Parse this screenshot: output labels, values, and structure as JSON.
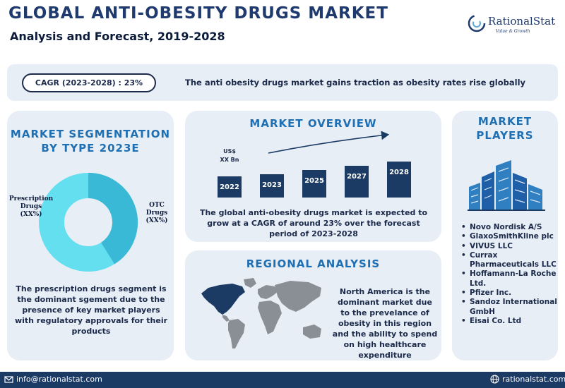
{
  "header": {
    "title": "GLOBAL ANTI-OBESITY DRUGS MARKET",
    "subtitle": "Analysis and Forecast, 2019-2028"
  },
  "logo": {
    "name": "RationalStat",
    "tagline": "Value & Growth"
  },
  "summary": {
    "cagr": "CAGR (2023-2028) : 23%",
    "tagline": "The anti obesity drugs market gains traction as obesity rates rise globally"
  },
  "segmentation": {
    "heading_line1": "MARKET SEGMENTATION",
    "heading_line2": "BY TYPE 2023E",
    "segments": [
      {
        "label_line1": "Prescription",
        "label_line2": "Drugs",
        "label_line3": "(XX%)"
      },
      {
        "label_line1": "OTC",
        "label_line2": "Drugs",
        "label_line3": "(XX%)"
      }
    ],
    "description": "The prescription drugs segment is the dominant sgement due to the presence of key market players with regulatory approvals for their products"
  },
  "overview": {
    "heading": "MARKET OVERVIEW",
    "unit_line1": "US$",
    "unit_line2": "XX Bn",
    "description": "The global anti-obesity drugs market is expected to grow at a CAGR of around 23% over the forecast period of 2023-2028"
  },
  "chart_data": {
    "type": "bar",
    "categories": [
      "2022",
      "2023",
      "2025",
      "2027",
      "2028"
    ],
    "relative_values": [
      1.0,
      1.1,
      1.3,
      1.5,
      1.7
    ]
  },
  "regional": {
    "heading": "REGIONAL ANALYSIS",
    "description": "North America is the dominant market due to the prevelance of obesity in this region and the ability to spend on high healthcare expenditure"
  },
  "players": {
    "heading_line1": "MARKET",
    "heading_line2": "PLAYERS",
    "items": [
      "Novo Nordisk A/S",
      "GlaxoSmithKline plc",
      "VIVUS LLC",
      "Currax Pharmaceuticals LLC",
      "Hoffamann-La Roche Ltd.",
      "Pfizer Inc.",
      "Sandoz International GmbH",
      "Eisai Co. Ltd"
    ]
  },
  "footer": {
    "email": "info@rationalstat.com",
    "website": "rationalstat.com"
  },
  "colors": {
    "heading_blue": "#1f6fb3",
    "navy": "#1b2a4a",
    "panel": "#e7eef5",
    "bar": "#1b3a64",
    "donut_dark": "#3ab9d6",
    "donut_light": "#64dff0"
  }
}
